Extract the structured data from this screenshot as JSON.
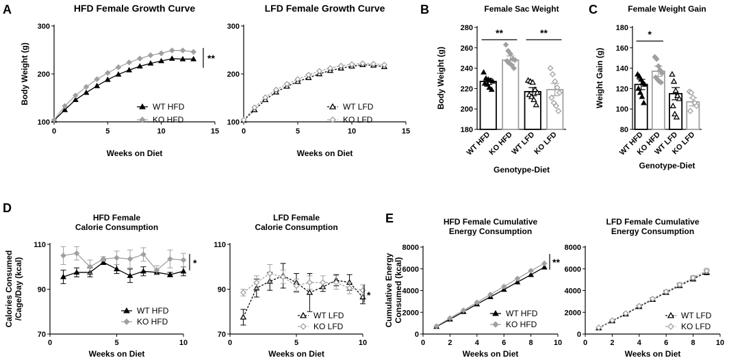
{
  "figure": {
    "panels": [
      {
        "label": "A"
      },
      {
        "label": "B"
      },
      {
        "label": "C"
      },
      {
        "label": "D"
      },
      {
        "label": "E"
      }
    ]
  },
  "chart_data": [
    {
      "id": "a1",
      "panel": "A",
      "type": "line",
      "title": "HFD Female Growth Curve",
      "xlabel": "Weeks on Diet",
      "ylabel": "Body Weight (g)",
      "xlim": [
        0,
        15
      ],
      "ylim": [
        100,
        300
      ],
      "xticks": [
        0,
        5,
        10,
        15
      ],
      "yticks": [
        100,
        200,
        300
      ],
      "x": [
        0,
        1,
        2,
        3,
        4,
        5,
        6,
        7,
        8,
        9,
        10,
        11,
        12,
        13
      ],
      "series": [
        {
          "name": "WT HFD",
          "color": "#000000",
          "marker": "triangle",
          "dash": false,
          "values": [
            103,
            125,
            146,
            161,
            175,
            188,
            199,
            208,
            216,
            222,
            227,
            232,
            231,
            231
          ]
        },
        {
          "name": "KO HFD",
          "color": "#a0a0a0",
          "marker": "diamond",
          "dash": false,
          "values": [
            104,
            133,
            155,
            173,
            189,
            202,
            214,
            224,
            232,
            239,
            243,
            249,
            249,
            246
          ]
        }
      ],
      "significance": "**"
    },
    {
      "id": "a2",
      "panel": "A",
      "type": "line",
      "title": "LFD Female Growth Curve",
      "xlabel": "Weeks on Diet",
      "ylabel": "",
      "xlim": [
        0,
        15
      ],
      "ylim": [
        100,
        300
      ],
      "xticks": [
        0,
        5,
        10,
        15
      ],
      "yticks": [
        100,
        200,
        300
      ],
      "x": [
        0,
        1,
        2,
        3,
        4,
        5,
        6,
        7,
        8,
        9,
        10,
        11,
        12,
        13
      ],
      "series": [
        {
          "name": "WT LFD",
          "color": "#000000",
          "marker": "triangle-open",
          "dash": true,
          "values": [
            103,
            125,
            146,
            162,
            174,
            184,
            192,
            200,
            207,
            212,
            216,
            219,
            218,
            215
          ]
        },
        {
          "name": "KO LFD",
          "color": "#a0a0a0",
          "marker": "diamond-open",
          "dash": true,
          "values": [
            104,
            130,
            151,
            167,
            179,
            189,
            198,
            206,
            212,
            217,
            220,
            222,
            221,
            219
          ]
        }
      ]
    },
    {
      "id": "b",
      "panel": "B",
      "type": "bar",
      "title": "Female Sac Weight",
      "xlabel": "Genotype-Diet",
      "ylabel": "Body Weight (g)",
      "ylim": [
        180,
        280
      ],
      "yticks": [
        180,
        200,
        220,
        240,
        260,
        280
      ],
      "categories": [
        "WT HFD",
        "KO HFD",
        "WT LFD",
        "KO LFD"
      ],
      "values": [
        227,
        248,
        217,
        219
      ],
      "errors": [
        3,
        4,
        4,
        6
      ],
      "colors": [
        "#000000",
        "#a0a0a0",
        "#000000",
        "#a0a0a0"
      ],
      "points": [
        [
          236,
          230,
          229,
          228,
          227,
          225,
          224,
          221,
          219
        ],
        [
          263,
          257,
          254,
          249,
          248,
          247,
          245,
          243,
          240
        ],
        [
          228,
          227,
          226,
          219,
          216,
          214,
          212,
          209,
          204
        ],
        [
          240,
          234,
          227,
          221,
          216,
          211,
          206,
          203,
          198
        ]
      ],
      "significance": [
        {
          "pair": [
            0,
            1
          ],
          "label": "**"
        },
        {
          "pair": [
            2,
            3
          ],
          "label": "**"
        }
      ]
    },
    {
      "id": "c",
      "panel": "C",
      "type": "bar",
      "title": "Female Weight Gain",
      "xlabel": "Genotype-Diet",
      "ylabel": "Weight Gain (g)",
      "ylim": [
        80,
        180
      ],
      "yticks": [
        80,
        100,
        120,
        140,
        160,
        180
      ],
      "categories": [
        "WT HFD",
        "KO HFD",
        "WT LFD",
        "KO LFD"
      ],
      "values": [
        124,
        137,
        115,
        107
      ],
      "errors": [
        5,
        5,
        6,
        4
      ],
      "colors": [
        "#000000",
        "#a0a0a0",
        "#000000",
        "#a0a0a0"
      ],
      "points": [
        [
          134,
          132,
          129,
          126,
          124,
          120,
          116,
          112,
          106
        ],
        [
          151,
          149,
          142,
          138,
          135,
          131,
          129,
          127,
          126
        ],
        [
          134,
          127,
          118,
          113,
          110,
          103,
          95,
          92
        ],
        [
          117,
          116,
          111,
          106,
          103,
          98
        ]
      ],
      "significance": [
        {
          "pair": [
            0,
            1
          ],
          "label": "*"
        }
      ]
    },
    {
      "id": "d1",
      "panel": "D",
      "type": "line",
      "title": "HFD Female\nCalorie Consumption",
      "xlabel": "Weeks on Diet",
      "ylabel": "Calories Consumed\n/Cage/Day (kcal)",
      "xlim": [
        0,
        10
      ],
      "ylim": [
        70,
        110
      ],
      "xticks": [
        0,
        5,
        10
      ],
      "yticks": [
        70,
        90,
        110
      ],
      "x": [
        1,
        2,
        3,
        4,
        5,
        6,
        7,
        8,
        9,
        10
      ],
      "series": [
        {
          "name": "WT HFD",
          "color": "#000000",
          "marker": "triangle",
          "dash": false,
          "values": [
            95.5,
            97.5,
            97.5,
            102,
            99,
            96,
            98,
            97.5,
            96.5,
            98
          ],
          "errors": [
            3,
            2,
            2,
            1,
            2,
            3,
            2,
            1,
            1,
            2
          ]
        },
        {
          "name": "KO HFD",
          "color": "#a0a0a0",
          "marker": "diamond",
          "dash": false,
          "values": [
            105,
            106,
            100,
            103.5,
            104,
            103.5,
            105.5,
            98.5,
            103.5,
            103
          ],
          "errors": [
            4,
            3,
            3,
            1,
            3,
            4,
            3,
            2,
            4,
            3
          ]
        }
      ],
      "significance": "*"
    },
    {
      "id": "d2",
      "panel": "D",
      "type": "line",
      "title": "LFD Female\nCalorie Consumption",
      "xlabel": "Weeks on Diet",
      "ylabel": "",
      "xlim": [
        0,
        10
      ],
      "ylim": [
        70,
        110
      ],
      "xticks": [
        0,
        5,
        10
      ],
      "yticks": [
        70,
        90,
        110
      ],
      "x": [
        1,
        2,
        3,
        4,
        5,
        6,
        7,
        8,
        9,
        10
      ],
      "series": [
        {
          "name": "WT LFD",
          "color": "#000000",
          "marker": "triangle-open",
          "dash": true,
          "values": [
            77.5,
            90.5,
            93.5,
            96,
            93,
            88.5,
            91,
            94,
            93,
            86.5
          ],
          "errors": [
            3.5,
            4,
            4,
            5.5,
            4,
            8.5,
            2,
            2.5,
            3.5,
            3
          ]
        },
        {
          "name": "KO LFD",
          "color": "#a0a0a0",
          "marker": "diamond-open",
          "dash": true,
          "values": [
            88.5,
            93,
            97,
            95.5,
            91.5,
            93,
            93,
            93,
            90.5,
            89.5
          ],
          "errors": [
            1.5,
            3,
            4,
            3,
            3,
            3,
            3,
            3,
            2.5,
            2.5
          ]
        }
      ],
      "significance": "*"
    },
    {
      "id": "e1",
      "panel": "E",
      "type": "line",
      "title": "HFD Female Cumulative\nEnergy Consumption",
      "xlabel": "Weeks on Diet",
      "ylabel": "Cumulative Energy\nConsumed (kcal)",
      "xlim": [
        0,
        10
      ],
      "ylim": [
        0,
        8000
      ],
      "xticks": [
        0,
        2,
        4,
        6,
        8,
        10
      ],
      "yticks": [
        0,
        2000,
        4000,
        6000,
        8000
      ],
      "x": [
        1,
        2,
        3,
        4,
        5,
        6,
        7,
        8,
        9
      ],
      "series": [
        {
          "name": "WT HFD",
          "color": "#000000",
          "marker": "triangle",
          "dash": false,
          "values": [
            680,
            1360,
            2050,
            2750,
            3420,
            4090,
            4780,
            5450,
            6150
          ]
        },
        {
          "name": "KO HFD",
          "color": "#a0a0a0",
          "marker": "diamond",
          "dash": false,
          "values": [
            730,
            1460,
            2180,
            2910,
            3640,
            4370,
            5100,
            5820,
            6500
          ]
        }
      ],
      "significance": "**"
    },
    {
      "id": "e2",
      "panel": "E",
      "type": "line",
      "title": "LFD Female Cumulative\nEnergy Consumption",
      "xlabel": "Weeks on Diet",
      "ylabel": "",
      "xlim": [
        0,
        10
      ],
      "ylim": [
        0,
        8000
      ],
      "xticks": [
        0,
        2,
        4,
        6,
        8,
        10
      ],
      "yticks": [
        0,
        2000,
        4000,
        6000,
        8000
      ],
      "x": [
        1,
        2,
        3,
        4,
        5,
        6,
        7,
        8,
        9
      ],
      "series": [
        {
          "name": "WT LFD",
          "color": "#000000",
          "marker": "triangle-open",
          "dash": true,
          "values": [
            560,
            1200,
            1830,
            2520,
            3170,
            3820,
            4450,
            5070,
            5680
          ],
          "errors": [
            0,
            50,
            80,
            100,
            120,
            150,
            170,
            200,
            220
          ]
        },
        {
          "name": "KO LFD",
          "color": "#a0a0a0",
          "marker": "diamond-open",
          "dash": true,
          "values": [
            600,
            1260,
            1910,
            2590,
            3250,
            3900,
            4550,
            5180,
            5820
          ],
          "errors": [
            0,
            50,
            80,
            100,
            120,
            150,
            170,
            200,
            220
          ]
        }
      ]
    }
  ]
}
